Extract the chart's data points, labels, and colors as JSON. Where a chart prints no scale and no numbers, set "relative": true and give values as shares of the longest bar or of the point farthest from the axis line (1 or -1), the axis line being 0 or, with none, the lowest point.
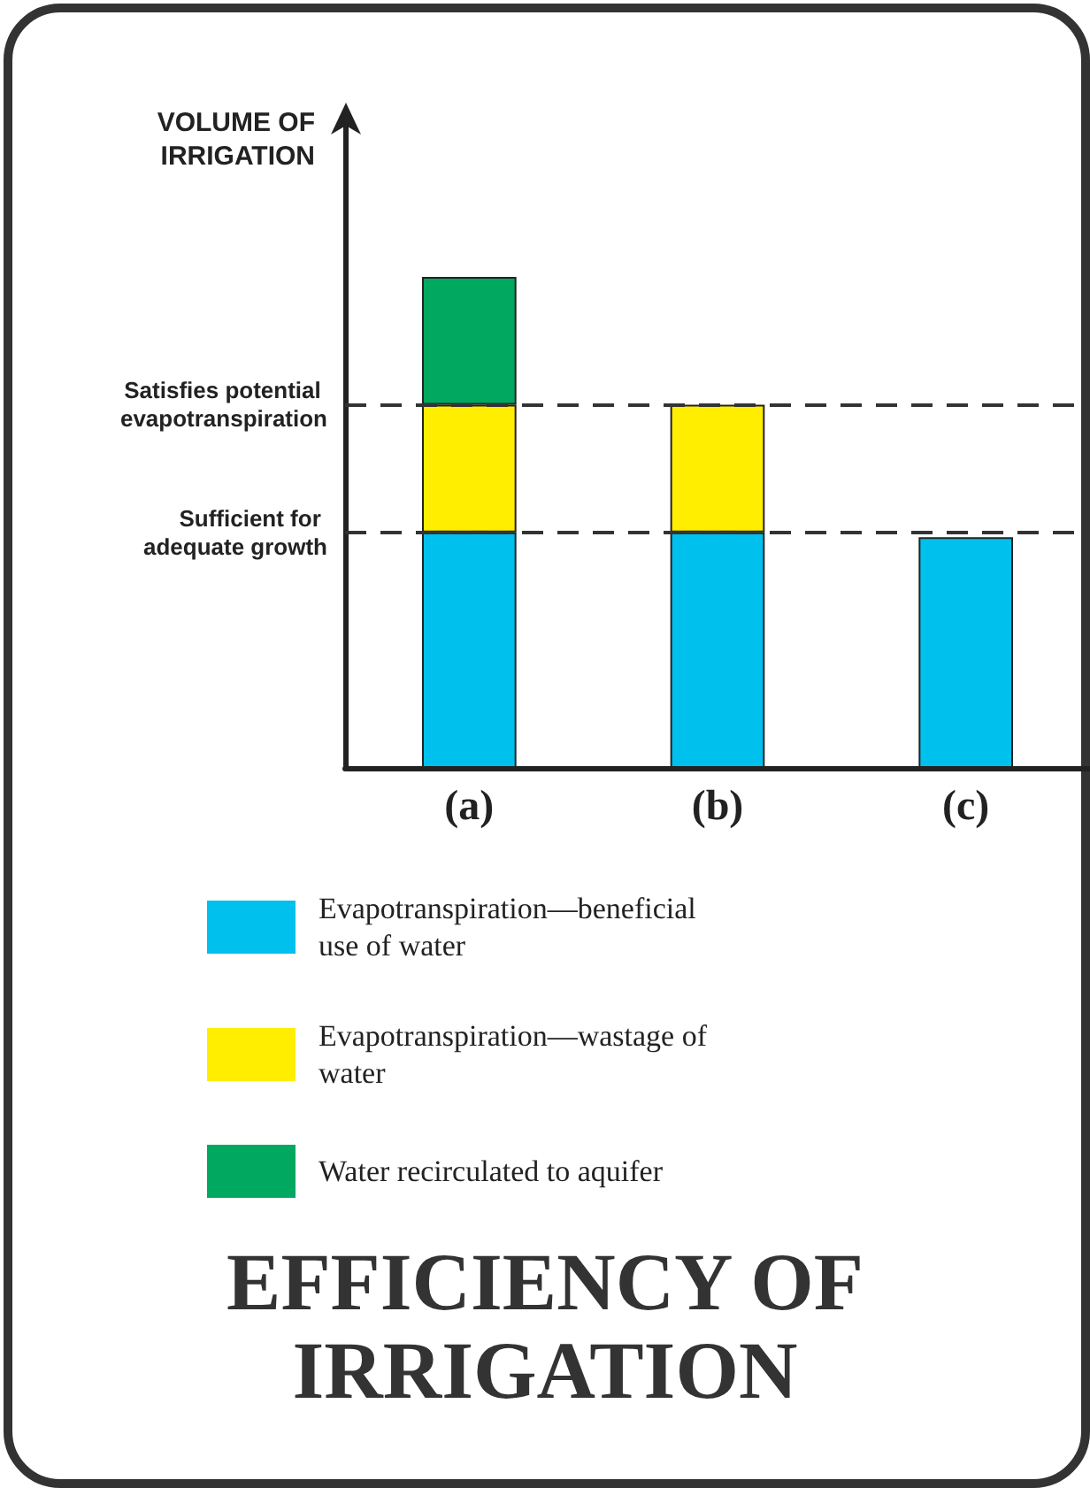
{
  "chart_data": {
    "type": "bar",
    "title": "EFFICIENCY OF IRRIGATION",
    "ylabel": "VOLUME OF IRRIGATION",
    "categories": [
      "(a)",
      "(b)",
      "(c)"
    ],
    "stacked": true,
    "relative": true,
    "legend": "bottom",
    "grid": false,
    "series": [
      {
        "name": "Evapotranspiration—beneficial use of water",
        "color": "#00c0ee",
        "values": [
          0.48,
          0.48,
          0.47
        ]
      },
      {
        "name": "Evapotranspiration—wastage of water",
        "color": "#ffee00",
        "values": [
          0.26,
          0.26,
          null
        ]
      },
      {
        "name": "Water recirculated to aquifer",
        "color": "#00a860",
        "values": [
          0.26,
          null,
          null
        ]
      }
    ],
    "ref_lines": [
      {
        "axis": "y",
        "value": 0.74,
        "label": "Satisfies potential evapotranspiration",
        "line_style": "dashed"
      },
      {
        "axis": "y",
        "value": 0.48,
        "label": "Sufficient for adequate growth",
        "line_style": "dashed"
      }
    ]
  }
}
